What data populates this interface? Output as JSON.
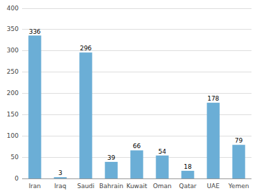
{
  "chart_data": {
    "type": "bar",
    "categories": [
      "Iran",
      "Iraq",
      "Saudi",
      "Bahrain",
      "Kuwait",
      "Oman",
      "Qatar",
      "UAE",
      "Yemen"
    ],
    "values": [
      336,
      3,
      296,
      39,
      66,
      54,
      18,
      178,
      79
    ],
    "color": "#6baed6",
    "ylim": [
      0,
      400
    ],
    "yticks": [
      0,
      50,
      100,
      150,
      200,
      250,
      300,
      350,
      400
    ],
    "grid": true,
    "data_labels": true
  }
}
